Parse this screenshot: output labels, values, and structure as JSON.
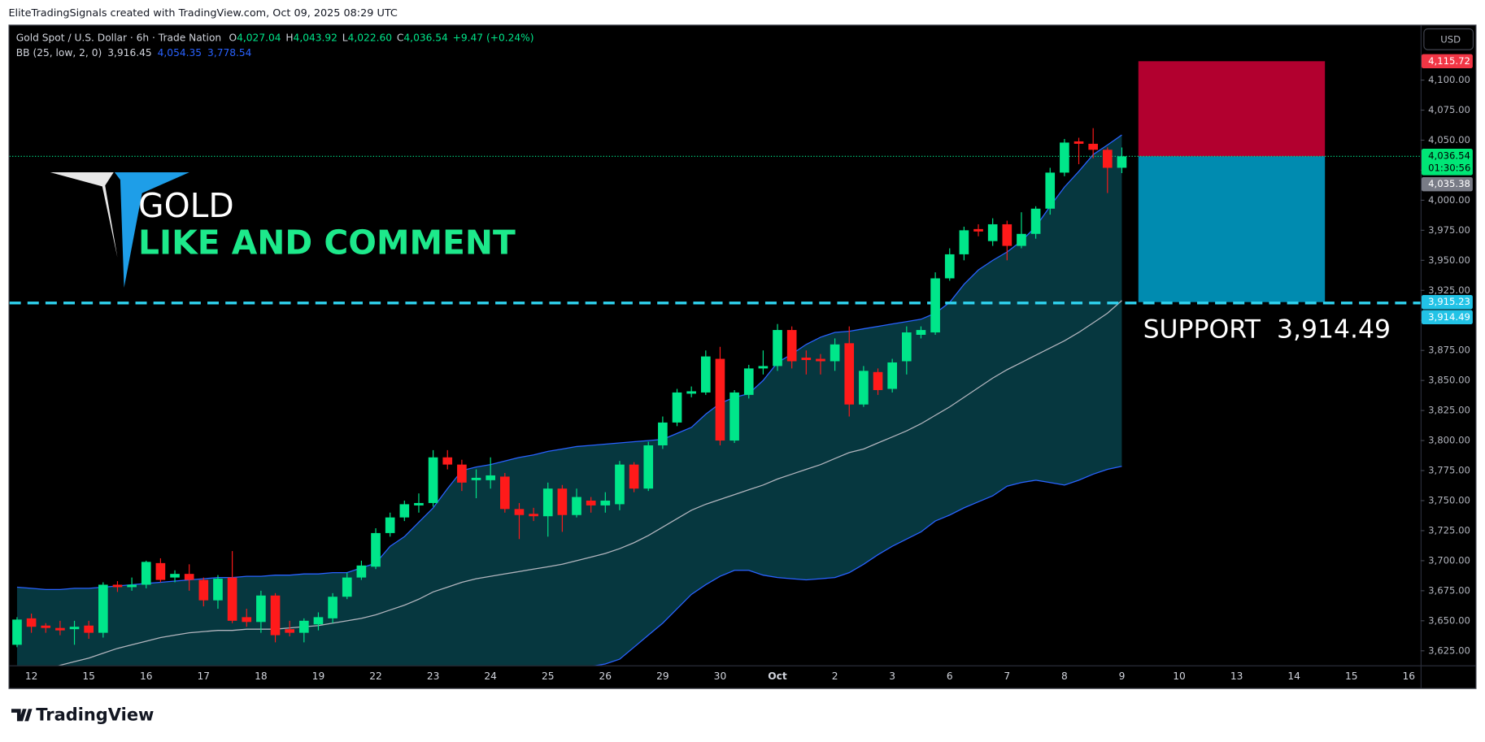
{
  "chart_data": {
    "type": "candlestick",
    "header": "EliteTradingSignals created with TradingView.com, Oct 09, 2025 08:29 UTC",
    "legend": {
      "symbol": "Gold Spot / U.S. Dollar · 6h · Trade Nation",
      "ohlc": [
        {
          "label": "O",
          "value": "4,027.04"
        },
        {
          "label": "H",
          "value": "4,043.92"
        },
        {
          "label": "L",
          "value": "4,022.60"
        },
        {
          "label": "C",
          "value": "4,036.54"
        }
      ],
      "change": "+9.47 (+0.24%)",
      "bb_name": "BB (25, low, 2, 0)",
      "bb_values": [
        "3,916.45",
        "4,054.35",
        "3,778.54"
      ]
    },
    "currency": "USD",
    "title": "GOLD",
    "subtitle": "LIKE AND COMMENT",
    "support_label": "SUPPORT  3,914.49",
    "support_level": 3914.49,
    "current_price": 4036.54,
    "position": {
      "top": 4115.72,
      "entry": 4036.54,
      "bottom": 3915.23,
      "profit_color": "#b2002f",
      "loss_color": "#008bb0"
    },
    "up_color": "#00e68a",
    "down_color": "#ff1a1a",
    "categories": [
      null,
      "12",
      null,
      null,
      null,
      "15",
      null,
      null,
      null,
      "16",
      null,
      null,
      null,
      "17",
      null,
      null,
      null,
      "18",
      null,
      null,
      null,
      "19",
      null,
      null,
      null,
      "22",
      null,
      null,
      null,
      "23",
      null,
      null,
      null,
      "24",
      null,
      null,
      null,
      "25",
      null,
      null,
      null,
      "26",
      null,
      null,
      null,
      "29",
      null,
      null,
      null,
      "30",
      null,
      null,
      null,
      "Oct",
      null,
      null,
      null,
      "2",
      null,
      null,
      null,
      "3",
      null,
      null,
      null,
      "6",
      null,
      null,
      null,
      "7",
      null,
      null,
      null,
      "8",
      null,
      null,
      null,
      "9",
      null,
      null,
      null,
      "10",
      null,
      null,
      null,
      "13",
      null,
      null,
      null,
      "14",
      null,
      null,
      null,
      "15",
      null,
      null,
      null,
      "16"
    ],
    "open": [
      3630,
      3652,
      3646,
      3644,
      3643,
      3646,
      3640,
      3680,
      3678,
      3680,
      3698,
      3686,
      3689,
      3684,
      3667,
      3686,
      3653,
      3649,
      3671,
      3643,
      3640,
      3647,
      3652,
      3670,
      3686,
      3695,
      3723,
      3736,
      3746,
      3748,
      3786,
      3780,
      3767,
      3767,
      3770,
      3743,
      3739,
      3737,
      3760,
      3738,
      3750,
      3746,
      3747,
      3780,
      3760,
      3796,
      3815,
      3839,
      3840,
      3868,
      3800,
      3838,
      3860,
      3862,
      3892,
      3869,
      3868,
      3866,
      3881,
      3830,
      3857,
      3843,
      3866,
      3888,
      3890,
      3935,
      3955,
      3976,
      3966,
      3980,
      3962,
      3972,
      3993,
      4023,
      4049,
      4047,
      4042,
      4027.04,
      null,
      null,
      null,
      null,
      null,
      null,
      null,
      null,
      null,
      null,
      null,
      null,
      null,
      null,
      null,
      null,
      null,
      null,
      null,
      null
    ],
    "high": [
      3653,
      3656,
      3648,
      3650,
      3650,
      3650,
      3682,
      3683,
      3686,
      3700,
      3702,
      3692,
      3697,
      3686,
      3688,
      3708,
      3660,
      3675,
      3673,
      3650,
      3652,
      3657,
      3673,
      3690,
      3700,
      3727,
      3740,
      3750,
      3756,
      3792,
      3792,
      3784,
      3776,
      3786,
      3773,
      3748,
      3744,
      3765,
      3763,
      3760,
      3753,
      3757,
      3783,
      3782,
      3799,
      3820,
      3843,
      3845,
      3875,
      3878,
      3842,
      3863,
      3875,
      3897,
      3895,
      3875,
      3872,
      3885,
      3895,
      3862,
      3860,
      3868,
      3895,
      3895,
      3940,
      3960,
      3978,
      3980,
      3985,
      3983,
      3990,
      3995,
      4027,
      4051,
      4052,
      4060,
      4044,
      4043.92,
      null,
      null,
      null,
      null,
      null,
      null,
      null,
      null,
      null,
      null,
      null,
      null,
      null,
      null,
      null,
      null,
      null,
      null,
      null,
      null
    ],
    "low": [
      3628,
      3640,
      3640,
      3638,
      3630,
      3635,
      3636,
      3674,
      3675,
      3677,
      3682,
      3682,
      3675,
      3662,
      3660,
      3648,
      3645,
      3640,
      3632,
      3637,
      3632,
      3642,
      3648,
      3668,
      3684,
      3693,
      3720,
      3733,
      3740,
      3745,
      3776,
      3758,
      3752,
      3760,
      3740,
      3718,
      3733,
      3720,
      3724,
      3736,
      3740,
      3740,
      3742,
      3757,
      3758,
      3793,
      3812,
      3836,
      3838,
      3796,
      3798,
      3835,
      3855,
      3858,
      3860,
      3855,
      3855,
      3858,
      3820,
      3828,
      3838,
      3840,
      3855,
      3885,
      3888,
      3933,
      3950,
      3970,
      3962,
      3950,
      3960,
      3968,
      3988,
      4020,
      4030,
      4035,
      4006,
      4022.6,
      null,
      null,
      null,
      null,
      null,
      null,
      null,
      null,
      null,
      null,
      null,
      null,
      null,
      null,
      null,
      null,
      null,
      null,
      null,
      null
    ],
    "close": [
      3651,
      3645,
      3644,
      3642,
      3645,
      3640,
      3680,
      3678,
      3680,
      3699,
      3684,
      3689,
      3684,
      3667,
      3685,
      3650,
      3649,
      3671,
      3638,
      3640,
      3650,
      3653,
      3670,
      3686,
      3696,
      3723,
      3736,
      3747,
      3748,
      3786,
      3780,
      3765,
      3769,
      3771,
      3743,
      3738,
      3737,
      3760,
      3738,
      3753,
      3746,
      3750,
      3780,
      3760,
      3796,
      3815,
      3840,
      3841,
      3870,
      3800,
      3840,
      3860,
      3862,
      3892,
      3866,
      3867,
      3866,
      3880,
      3830,
      3858,
      3842,
      3865,
      3890,
      3892,
      3935,
      3955,
      3975,
      3974,
      3980,
      3962,
      3972,
      3993,
      4023,
      4048,
      4047,
      4042,
      4027,
      4036.54,
      null,
      null,
      null,
      null,
      null,
      null,
      null,
      null,
      null,
      null,
      null,
      null,
      null,
      null,
      null,
      null,
      null,
      null,
      null,
      null
    ],
    "bands": {
      "band_color": "#2962ff",
      "basis_color": "#b2b5be",
      "fill": "#063a42",
      "upper": [
        3678,
        3677,
        3676,
        3676,
        3677,
        3677,
        3678,
        3679,
        3680,
        3681,
        3682,
        3683,
        3684,
        3685,
        3686,
        3686,
        3687,
        3687,
        3688,
        3688,
        3689,
        3689,
        3690,
        3690,
        3694,
        3698,
        3712,
        3720,
        3732,
        3744,
        3760,
        3775,
        3778,
        3780,
        3783,
        3786,
        3788,
        3791,
        3793,
        3795,
        3796,
        3797,
        3798,
        3799,
        3800,
        3801,
        3806,
        3811,
        3822,
        3831,
        3836,
        3839,
        3850,
        3865,
        3872,
        3880,
        3886,
        3890,
        3891,
        3893,
        3895,
        3897,
        3899,
        3901,
        3906,
        3915,
        3930,
        3942,
        3950,
        3957,
        3966,
        3978,
        3995,
        4011,
        4024,
        4038,
        4046,
        4054.35,
        null,
        null,
        null,
        null,
        null,
        null,
        null,
        null,
        null,
        null,
        null,
        null,
        null,
        null,
        null,
        null,
        null,
        null,
        null,
        null
      ],
      "basis": [
        3600,
        3605,
        3609,
        3613,
        3616,
        3619,
        3623,
        3627,
        3630,
        3633,
        3636,
        3638,
        3640,
        3641,
        3642,
        3642,
        3643,
        3643,
        3643,
        3644,
        3645,
        3646,
        3648,
        3650,
        3652,
        3655,
        3659,
        3663,
        3668,
        3674,
        3678,
        3682,
        3685,
        3687,
        3689,
        3691,
        3693,
        3695,
        3697,
        3700,
        3703,
        3706,
        3710,
        3715,
        3721,
        3728,
        3735,
        3742,
        3747,
        3751,
        3755,
        3759,
        3763,
        3768,
        3772,
        3776,
        3780,
        3785,
        3790,
        3793,
        3798,
        3803,
        3808,
        3814,
        3821,
        3828,
        3836,
        3844,
        3852,
        3859,
        3865,
        3871,
        3877,
        3883,
        3890,
        3898,
        3906,
        3916.45,
        null,
        null,
        null,
        null,
        null,
        null,
        null,
        null,
        null,
        null,
        null,
        null,
        null,
        null,
        null,
        null,
        null,
        null,
        null,
        null
      ],
      "lower": [
        3522,
        3525,
        3530,
        3535,
        3538,
        3540,
        3545,
        3550,
        3555,
        3560,
        3565,
        3570,
        3575,
        3580,
        3582,
        3582,
        3583,
        3583,
        3584,
        3584,
        3585,
        3585,
        3586,
        3586,
        3587,
        3588,
        3590,
        3592,
        3594,
        3596,
        3598,
        3600,
        3602,
        3604,
        3606,
        3607,
        3608,
        3609,
        3610,
        3611,
        3612,
        3614,
        3618,
        3628,
        3638,
        3648,
        3660,
        3672,
        3680,
        3687,
        3692,
        3692,
        3688,
        3686,
        3685,
        3684,
        3685,
        3686,
        3690,
        3697,
        3705,
        3712,
        3718,
        3724,
        3733,
        3738,
        3744,
        3749,
        3754,
        3762,
        3765,
        3767,
        3765,
        3763,
        3767,
        3772,
        3776,
        3778.54,
        null,
        null,
        null,
        null,
        null,
        null,
        null,
        null,
        null,
        null,
        null,
        null,
        null,
        null,
        null,
        null,
        null,
        null,
        null,
        null
      ]
    },
    "ylim": [
      3612.9,
      4145.4
    ],
    "yticks": [
      {
        "value": 3625,
        "label": "3,625.00"
      },
      {
        "value": 3650,
        "label": "3,650.00"
      },
      {
        "value": 3675,
        "label": "3,675.00"
      },
      {
        "value": 3700,
        "label": "3,700.00"
      },
      {
        "value": 3725,
        "label": "3,725.00"
      },
      {
        "value": 3750,
        "label": "3,750.00"
      },
      {
        "value": 3775,
        "label": "3,775.00"
      },
      {
        "value": 3800,
        "label": "3,800.00"
      },
      {
        "value": 3825,
        "label": "3,825.00"
      },
      {
        "value": 3850,
        "label": "3,850.00"
      },
      {
        "value": 3875,
        "label": "3,875.00"
      },
      {
        "value": 3900,
        "label": "3,900.00"
      },
      {
        "value": 3925,
        "label": "3,925.00"
      },
      {
        "value": 3950,
        "label": "3,950.00"
      },
      {
        "value": 3975,
        "label": "3,975.00"
      },
      {
        "value": 4000,
        "label": "4,000.00"
      },
      {
        "value": 4025,
        "label": "4,025.00"
      },
      {
        "value": 4050,
        "label": "4,050.00"
      },
      {
        "value": 4075,
        "label": "4,075.00"
      },
      {
        "value": 4100,
        "label": "4,100.00"
      }
    ],
    "grid": false,
    "price_labels": [
      {
        "value": 4115.72,
        "label": "4,115.72",
        "color": "#f23645"
      },
      {
        "value": 4036.54,
        "label": "4,036.54",
        "color": "#00e676",
        "countdown": "01:30:56"
      },
      {
        "value": 4035.38,
        "label": "4,035.38",
        "color": "#787b86"
      },
      {
        "value": 3915.23,
        "label": "3,915.23",
        "color": "#22c3e6"
      },
      {
        "value": 3914.49,
        "label": "3,914.49",
        "color": "#22c3e6"
      }
    ],
    "brand": "TradingView"
  }
}
